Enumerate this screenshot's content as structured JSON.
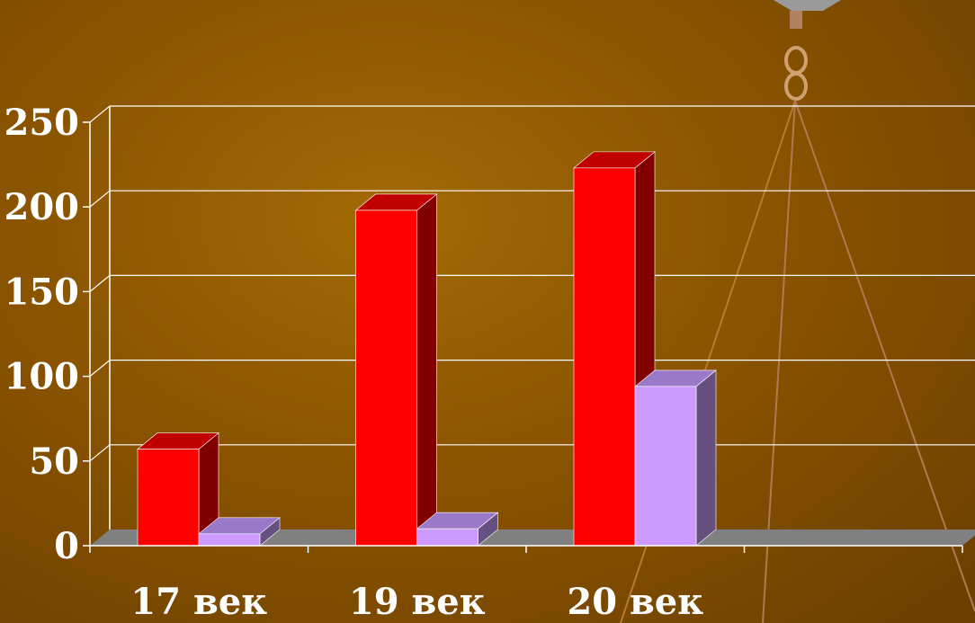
{
  "chart_data": {
    "type": "bar",
    "style": "3d-clustered-column",
    "categories": [
      "17 век",
      "19 век",
      "20 век",
      ""
    ],
    "series": [
      {
        "values": [
          57,
          198,
          223,
          null
        ],
        "color": "#ff0000",
        "side_color": "#800000",
        "top_color": "#c00000"
      },
      {
        "values": [
          7,
          10,
          94,
          null
        ],
        "color": "#cc99ff",
        "side_color": "#665080",
        "top_color": "#9a7ac8"
      }
    ],
    "y_ticks": [
      "0",
      "50",
      "100",
      "150",
      "200",
      "250"
    ],
    "ylim": [
      0,
      250
    ],
    "grid": true,
    "legend": "none",
    "title": "",
    "xlabel": "",
    "ylabel": ""
  },
  "colors": {
    "background": "#8a5400",
    "gridline": "#ffffff",
    "floor": "#808080",
    "text": "#ffffff"
  },
  "decor": {
    "scale_hook_icon": "balance-scale-hook-icon"
  }
}
